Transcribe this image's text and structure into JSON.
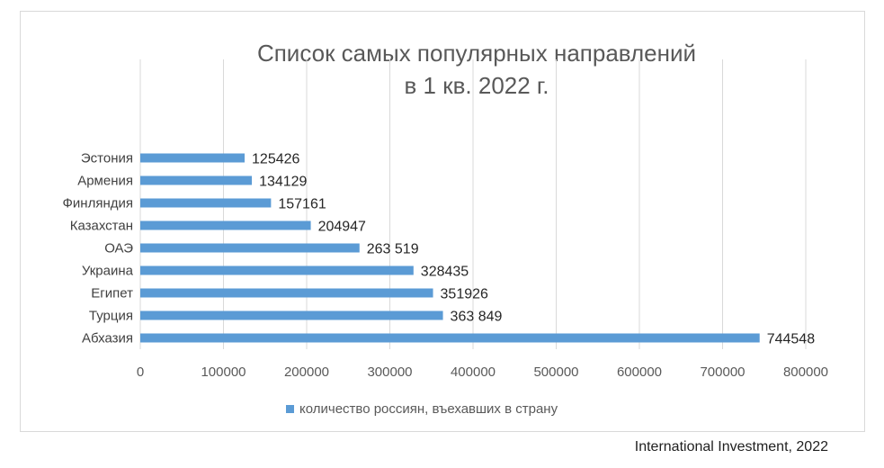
{
  "chart_data": {
    "type": "bar",
    "orientation": "horizontal",
    "title_lines": [
      "Список самых популярных направлений",
      "в 1 кв. 2022 г."
    ],
    "categories": [
      "Абхазия",
      "Турция",
      "Египет",
      "Украина",
      "ОАЭ",
      "Казахстан",
      "Финляндия",
      "Армения",
      "Эстония"
    ],
    "series": [
      {
        "name": "количество россиян, въехавших в страну",
        "values": [
          744548,
          363849,
          351926,
          328435,
          263519,
          204947,
          157161,
          134129,
          125426
        ],
        "labels": [
          "744548",
          "363 849",
          "351926",
          "328435",
          "263 519",
          "204947",
          "157161",
          "134129",
          "125426"
        ],
        "color": "#5b9bd5"
      }
    ],
    "xlim": [
      0,
      800000
    ],
    "xticks": [
      0,
      100000,
      200000,
      300000,
      400000,
      500000,
      600000,
      700000,
      800000
    ],
    "xtick_labels": [
      "0",
      "100000",
      "200000",
      "300000",
      "400000",
      "500000",
      "600000",
      "700000",
      "800000"
    ],
    "grid": "vertical",
    "legend_position": "bottom"
  },
  "source_text": "International Investment, 2022",
  "colors": {
    "bar": "#5b9bd5",
    "grid": "#d9d9d9",
    "text": "#595959"
  }
}
